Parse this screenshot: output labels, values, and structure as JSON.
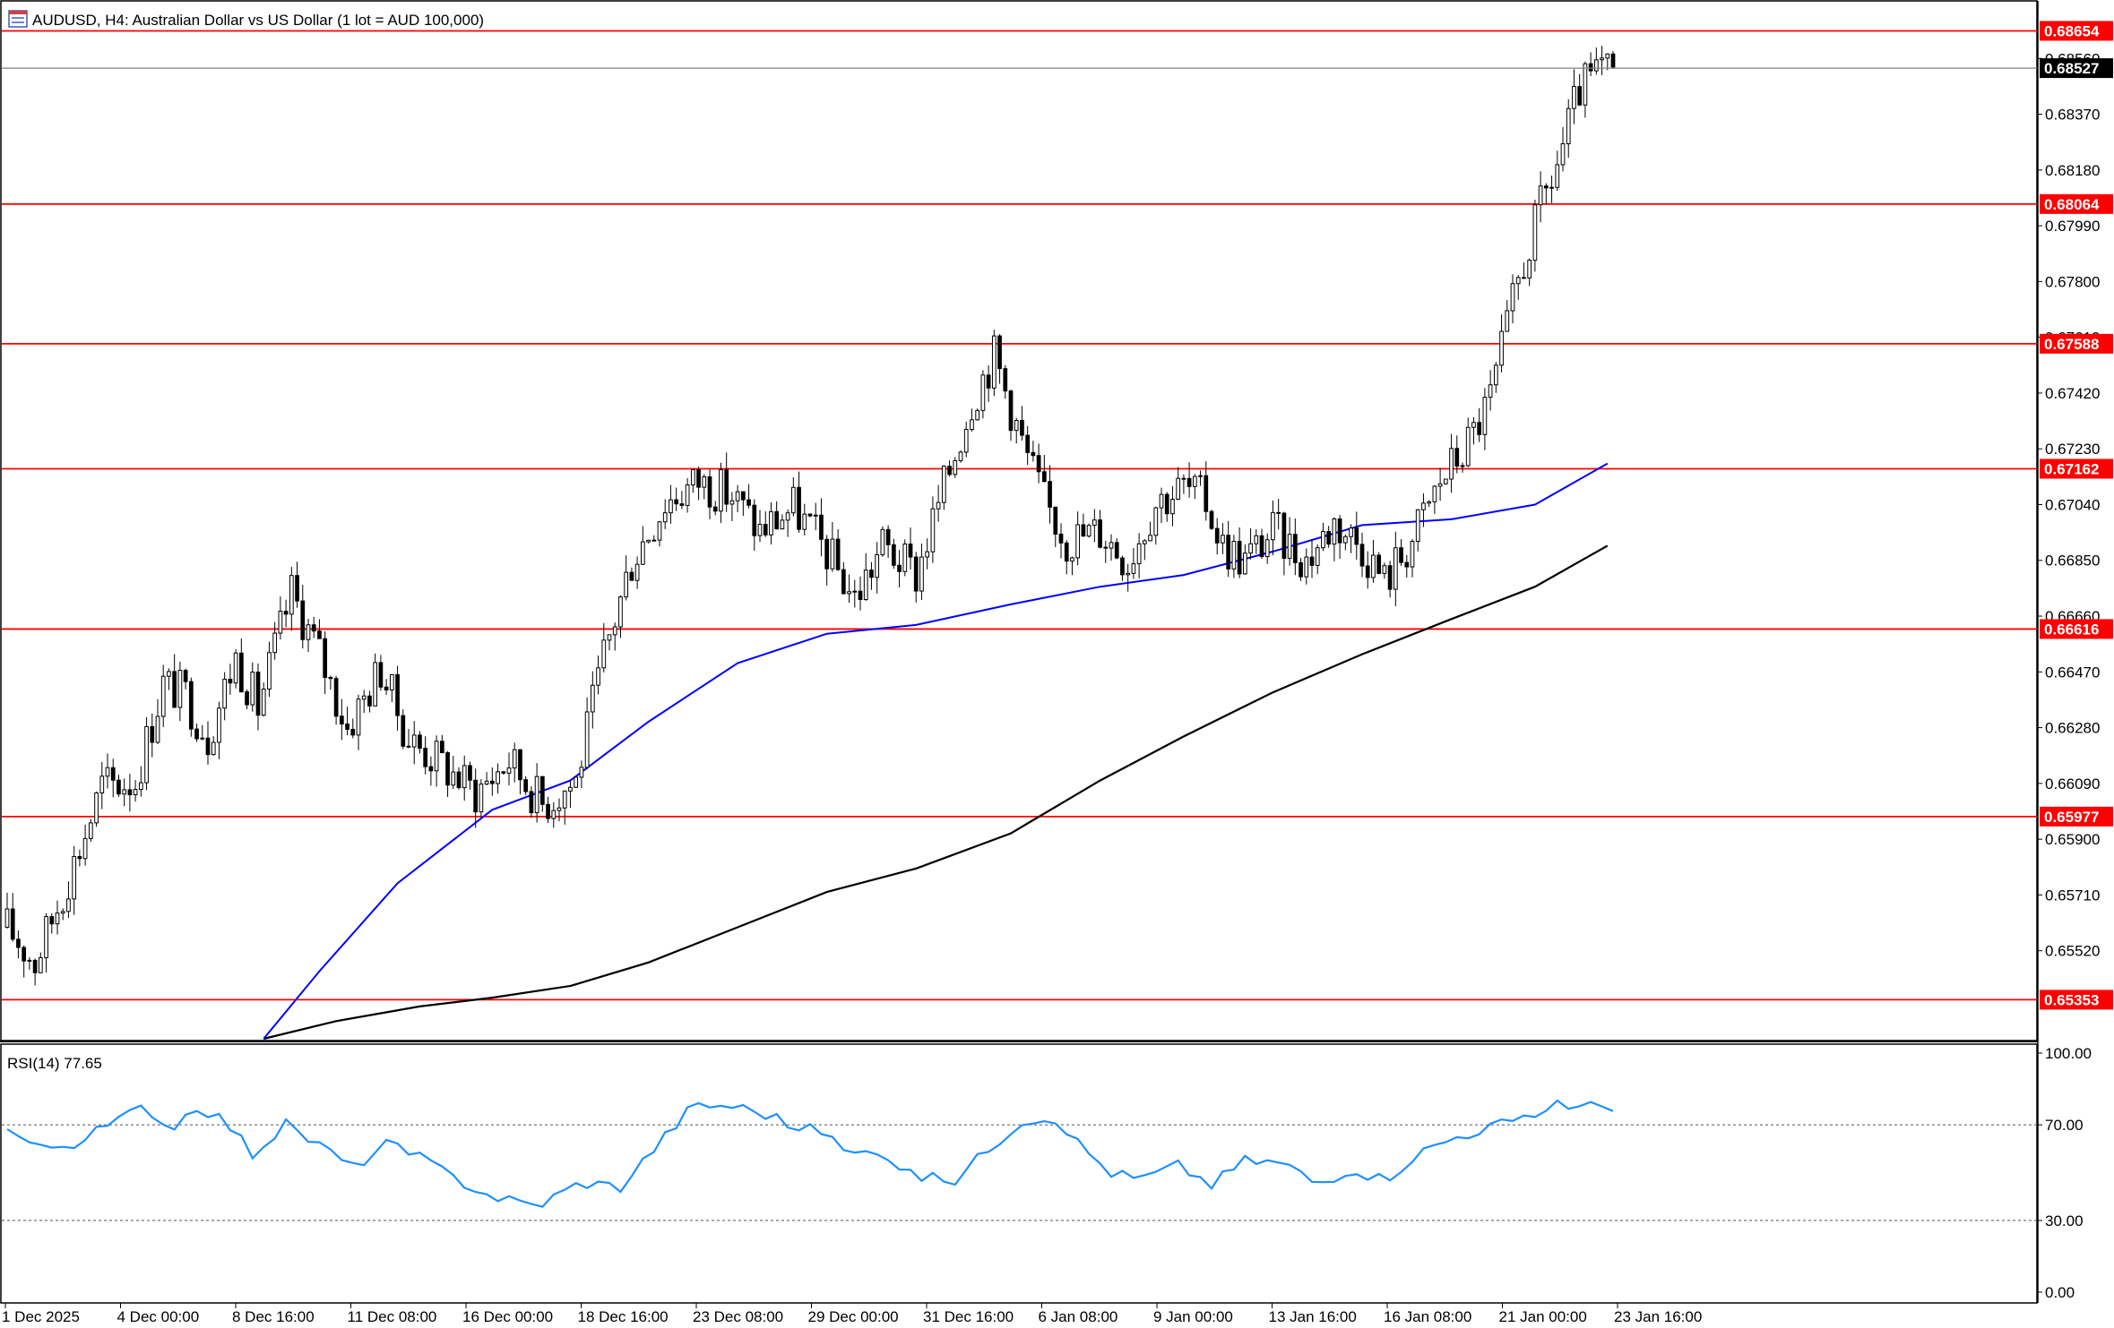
{
  "header": {
    "title": "AUDUSD, H4:  Australian Dollar vs US Dollar (1 lot = AUD 100,000)",
    "icon": "chart-window-icon"
  },
  "rsi_panel": {
    "label": "RSI(14) 77.65"
  },
  "colors": {
    "bull_body": "#ffffff",
    "bear_body": "#000000",
    "wick": "#000000",
    "ma_fast": "#0000ff",
    "ma_slow": "#000000",
    "level_line": "#ff0000",
    "level_label_bg": "#ff0000",
    "current_price_bg": "#000000",
    "rsi_line": "#1e90ff"
  },
  "chart_data": [
    {
      "type": "candlestick",
      "symbol": "AUDUSD",
      "timeframe": "H4",
      "ylim": [
        0.6522,
        0.6875
      ],
      "price_ticks": [
        "0.68560",
        "0.68370",
        "0.68180",
        "0.67990",
        "0.67800",
        "0.67610",
        "0.67420",
        "0.67230",
        "0.67040",
        "0.66850",
        "0.66660",
        "0.66470",
        "0.66280",
        "0.66090",
        "0.65900",
        "0.65710",
        "0.65520"
      ],
      "level_lines": [
        "0.68654",
        "0.68064",
        "0.67588",
        "0.67162",
        "0.66616",
        "0.65977",
        "0.65353"
      ],
      "current_price": "0.68527",
      "x_labels": [
        "1 Dec 2025",
        "4 Dec 00:00",
        "8 Dec 16:00",
        "11 Dec 08:00",
        "16 Dec 00:00",
        "18 Dec 16:00",
        "23 Dec 08:00",
        "29 Dec 00:00",
        "31 Dec 16:00",
        "6 Jan 08:00",
        "9 Jan 00:00",
        "13 Jan 16:00",
        "16 Jan 08:00",
        "21 Jan 00:00",
        "23 Jan 16:00"
      ],
      "close_path": [
        [
          0,
          0.656
        ],
        [
          5,
          0.6548
        ],
        [
          10,
          0.6572
        ],
        [
          14,
          0.6592
        ],
        [
          17,
          0.6608
        ],
        [
          23,
          0.661
        ],
        [
          28,
          0.6643
        ],
        [
          32,
          0.6639
        ],
        [
          36,
          0.6625
        ],
        [
          41,
          0.6652
        ],
        [
          45,
          0.6635
        ],
        [
          51,
          0.6674
        ],
        [
          56,
          0.6653
        ],
        [
          61,
          0.6628
        ],
        [
          67,
          0.6648
        ],
        [
          72,
          0.6624
        ],
        [
          77,
          0.6617
        ],
        [
          84,
          0.6606
        ],
        [
          90,
          0.6617
        ],
        [
          96,
          0.6602
        ],
        [
          102,
          0.661
        ],
        [
          107,
          0.6652
        ],
        [
          112,
          0.6685
        ],
        [
          118,
          0.6705
        ],
        [
          124,
          0.6712
        ],
        [
          130,
          0.6707
        ],
        [
          135,
          0.6695
        ],
        [
          141,
          0.6703
        ],
        [
          147,
          0.6688
        ],
        [
          152,
          0.6672
        ],
        [
          157,
          0.669
        ],
        [
          163,
          0.668
        ],
        [
          168,
          0.671
        ],
        [
          173,
          0.674
        ],
        [
          177,
          0.6755
        ],
        [
          182,
          0.6725
        ],
        [
          186,
          0.6705
        ],
        [
          190,
          0.6692
        ],
        [
          196,
          0.6695
        ],
        [
          201,
          0.6685
        ],
        [
          206,
          0.6705
        ],
        [
          211,
          0.671
        ],
        [
          215,
          0.6705
        ],
        [
          218,
          0.669
        ],
        [
          222,
          0.6685
        ],
        [
          227,
          0.6695
        ],
        [
          233,
          0.6685
        ],
        [
          238,
          0.6698
        ],
        [
          243,
          0.669
        ],
        [
          247,
          0.6678
        ],
        [
          252,
          0.6692
        ],
        [
          257,
          0.6712
        ],
        [
          262,
          0.6725
        ],
        [
          266,
          0.674
        ],
        [
          271,
          0.678
        ],
        [
          275,
          0.6805
        ],
        [
          278,
          0.682
        ],
        [
          282,
          0.6845
        ],
        [
          286,
          0.6852
        ],
        [
          288,
          0.685
        ]
      ],
      "ma_fast_path": [
        [
          46,
          0.6522
        ],
        [
          56,
          0.6545
        ],
        [
          70,
          0.6575
        ],
        [
          87,
          0.66
        ],
        [
          101,
          0.661
        ],
        [
          115,
          0.663
        ],
        [
          131,
          0.665
        ],
        [
          147,
          0.666
        ],
        [
          163,
          0.6663
        ],
        [
          180,
          0.667
        ],
        [
          196,
          0.6676
        ],
        [
          211,
          0.668
        ],
        [
          227,
          0.6688
        ],
        [
          243,
          0.6697
        ],
        [
          259,
          0.6699
        ],
        [
          274,
          0.6704
        ],
        [
          287,
          0.6718
        ]
      ],
      "ma_slow_path": [
        [
          46,
          0.6522
        ],
        [
          59,
          0.6528
        ],
        [
          74,
          0.6533
        ],
        [
          87,
          0.6536
        ],
        [
          101,
          0.654
        ],
        [
          115,
          0.6548
        ],
        [
          131,
          0.656
        ],
        [
          147,
          0.6572
        ],
        [
          163,
          0.658
        ],
        [
          180,
          0.6592
        ],
        [
          196,
          0.661
        ],
        [
          211,
          0.6625
        ],
        [
          227,
          0.664
        ],
        [
          243,
          0.6653
        ],
        [
          259,
          0.6665
        ],
        [
          274,
          0.6676
        ],
        [
          287,
          0.669
        ]
      ],
      "bar_count": 289
    },
    {
      "type": "line",
      "name": "RSI(14)",
      "ylim": [
        0,
        100
      ],
      "y_ticks": [
        "100.00",
        "70.00",
        "30.00",
        "0.00"
      ],
      "levels": [
        70,
        30
      ],
      "last_value": 77.65,
      "path": [
        [
          0,
          68
        ],
        [
          6,
          60
        ],
        [
          13,
          63
        ],
        [
          20,
          72
        ],
        [
          25,
          78
        ],
        [
          29,
          68
        ],
        [
          34,
          78
        ],
        [
          39,
          72
        ],
        [
          44,
          58
        ],
        [
          50,
          70
        ],
        [
          57,
          60
        ],
        [
          62,
          52
        ],
        [
          68,
          62
        ],
        [
          75,
          55
        ],
        [
          80,
          48
        ],
        [
          87,
          40
        ],
        [
          95,
          36
        ],
        [
          103,
          46
        ],
        [
          110,
          44
        ],
        [
          116,
          60
        ],
        [
          123,
          78
        ],
        [
          130,
          78
        ],
        [
          137,
          74
        ],
        [
          142,
          68
        ],
        [
          146,
          68
        ],
        [
          151,
          57
        ],
        [
          156,
          60
        ],
        [
          163,
          48
        ],
        [
          170,
          47
        ],
        [
          176,
          60
        ],
        [
          182,
          72
        ],
        [
          188,
          73
        ],
        [
          193,
          60
        ],
        [
          198,
          50
        ],
        [
          203,
          47
        ],
        [
          210,
          53
        ],
        [
          216,
          45
        ],
        [
          222,
          55
        ],
        [
          229,
          54
        ],
        [
          235,
          45
        ],
        [
          241,
          52
        ],
        [
          247,
          47
        ],
        [
          253,
          58
        ],
        [
          260,
          65
        ],
        [
          267,
          70
        ],
        [
          273,
          72
        ],
        [
          278,
          80
        ],
        [
          282,
          77
        ],
        [
          285,
          78
        ],
        [
          288,
          78
        ]
      ]
    }
  ]
}
